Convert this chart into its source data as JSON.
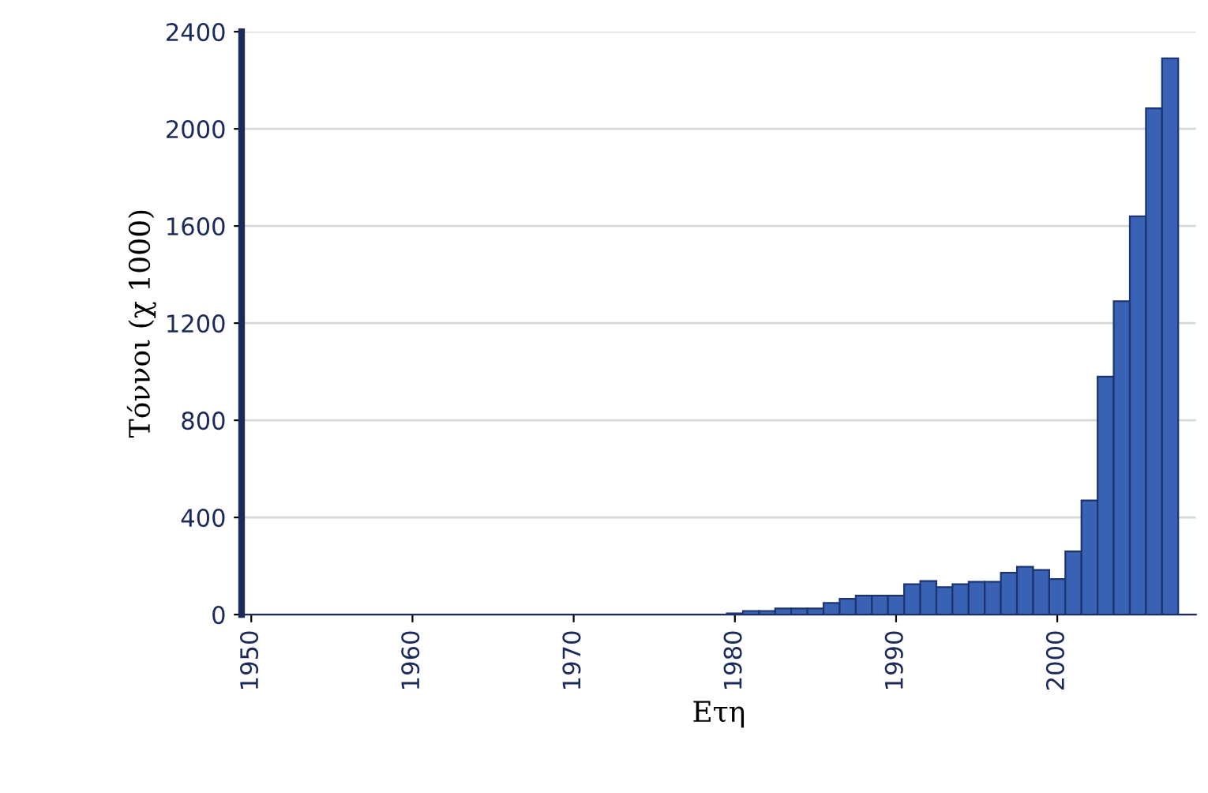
{
  "chart_data": {
    "type": "bar",
    "xlabel": "Ετη",
    "ylabel": "Τόννοι (χ 1000)",
    "x": [
      1980,
      1981,
      1982,
      1983,
      1984,
      1985,
      1986,
      1987,
      1988,
      1989,
      1990,
      1991,
      1992,
      1993,
      1994,
      1995,
      1996,
      1997,
      1998,
      1999,
      2000,
      2001,
      2002,
      2003,
      2004,
      2005,
      2006,
      2007
    ],
    "values": [
      5,
      15,
      15,
      25,
      25,
      25,
      48,
      65,
      78,
      78,
      78,
      125,
      138,
      113,
      125,
      135,
      135,
      172,
      197,
      184,
      146,
      260,
      470,
      980,
      1290,
      1640,
      2085,
      2290
    ],
    "color": "#3a62b4",
    "xlim": [
      1949.4,
      2008.6
    ],
    "xticks": [
      1950,
      1960,
      1970,
      1980,
      1990,
      2000
    ],
    "ylim": [
      0,
      2400
    ],
    "yticks": [
      0,
      400,
      800,
      1200,
      1600,
      2000,
      2400
    ],
    "grid": "y"
  }
}
